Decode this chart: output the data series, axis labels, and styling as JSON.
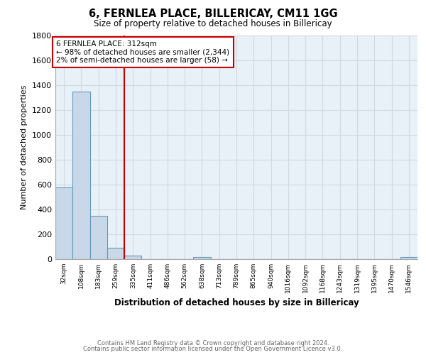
{
  "title": "6, FERNLEA PLACE, BILLERICAY, CM11 1GG",
  "subtitle": "Size of property relative to detached houses in Billericay",
  "xlabel": "Distribution of detached houses by size in Billericay",
  "ylabel": "Number of detached properties",
  "bar_labels": [
    "32sqm",
    "108sqm",
    "183sqm",
    "259sqm",
    "335sqm",
    "411sqm",
    "486sqm",
    "562sqm",
    "638sqm",
    "713sqm",
    "789sqm",
    "865sqm",
    "940sqm",
    "1016sqm",
    "1092sqm",
    "1168sqm",
    "1243sqm",
    "1319sqm",
    "1395sqm",
    "1470sqm",
    "1546sqm"
  ],
  "bar_values": [
    580,
    1350,
    350,
    90,
    30,
    0,
    0,
    0,
    20,
    0,
    0,
    0,
    0,
    0,
    0,
    0,
    0,
    0,
    0,
    0,
    15
  ],
  "bar_color": "#c8d8e8",
  "bar_edge_color": "#6699bb",
  "property_line_color": "#cc0000",
  "annotation_text": "6 FERNLEA PLACE: 312sqm\n← 98% of detached houses are smaller (2,344)\n2% of semi-detached houses are larger (58) →",
  "annotation_box_color": "#cc0000",
  "annotation_text_color": "#000000",
  "ylim": [
    0,
    1800
  ],
  "yticks": [
    0,
    200,
    400,
    600,
    800,
    1000,
    1200,
    1400,
    1600,
    1800
  ],
  "background_color": "#e8f0f8",
  "grid_color": "#d0d8e0",
  "footer_line1": "Contains HM Land Registry data © Crown copyright and database right 2024.",
  "footer_line2": "Contains public sector information licensed under the Open Government Licence v3.0."
}
